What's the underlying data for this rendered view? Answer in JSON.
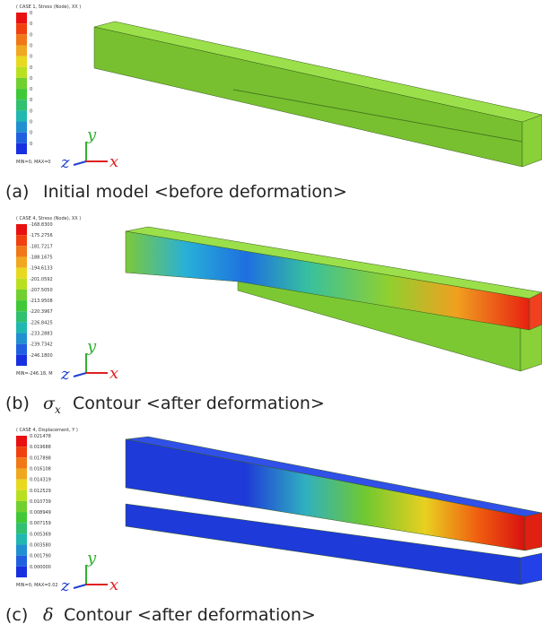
{
  "panels": [
    {
      "legend_title": "( CASE 1, Stress (Node), XX )",
      "legend_labels": [
        "0",
        "0",
        "0",
        "0",
        "0",
        "0",
        "0",
        "0",
        "0",
        "0",
        "0",
        "0",
        "0"
      ],
      "legend_footer": "MIN=0, MAX=0",
      "axes": {
        "y": "y",
        "z": "z",
        "x": "x"
      },
      "caption": {
        "label": "(a)",
        "text": "Initial model <before deformation>"
      }
    },
    {
      "legend_title": "( CASE 4, Stress (Node), XX )",
      "legend_labels": [
        "-168.8300",
        "-175.2756",
        "-181.7217",
        "-188.1675",
        "-194.6133",
        "-201.0592",
        "-207.5050",
        "-213.9508",
        "-220.3967",
        "-226.8425",
        "-233.2883",
        "-239.7342",
        "-246.1800"
      ],
      "legend_footer": "MIN=-246.18, M",
      "axes": {
        "y": "y",
        "z": "z",
        "x": "x"
      },
      "caption": {
        "label": "(b)",
        "symbol": "σ",
        "subscript": "x",
        "text": "Contour <after deformation>"
      }
    },
    {
      "legend_title": "( CASE 4, Displacement, Y )",
      "legend_labels": [
        "0.021478",
        "0.019688",
        "0.017898",
        "0.016108",
        "0.014319",
        "0.012529",
        "0.010739",
        "0.008949",
        "0.007159",
        "0.005369",
        "0.003580",
        "0.001790",
        "0.000000"
      ],
      "legend_footer": "MIN=0, MAX=0.02",
      "axes": {
        "y": "y",
        "z": "z",
        "x": "x"
      },
      "caption": {
        "label": "(c)",
        "symbol": "δ",
        "text": "Contour <after deformation>"
      }
    }
  ]
}
